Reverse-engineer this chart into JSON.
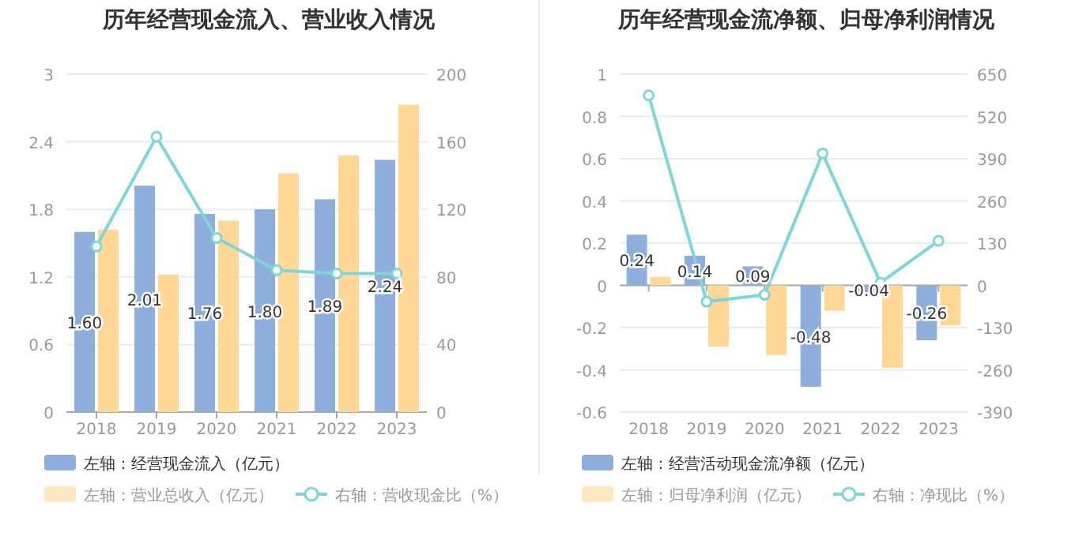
{
  "chart_data": [
    {
      "type": "bar",
      "title": "历年经营现金流入、营业收入情况",
      "categories": [
        "2018",
        "2019",
        "2020",
        "2021",
        "2022",
        "2023"
      ],
      "series": [
        {
          "name": "左轴：经营现金流入（亿元）",
          "color": "#8eaedc",
          "values": [
            1.6,
            2.01,
            1.76,
            1.8,
            1.89,
            2.24
          ],
          "value_labels": [
            "1.60",
            "2.01",
            "1.76",
            "1.80",
            "1.89",
            "2.24"
          ]
        },
        {
          "name": "左轴：营业总收入（亿元）",
          "color": "#ffd898",
          "values": [
            1.62,
            1.22,
            1.7,
            2.12,
            2.28,
            2.73
          ]
        },
        {
          "name": "右轴：营收现金比（%）",
          "type": "line",
          "axis": "y2",
          "color": "#7fd6d9",
          "marker": "circle",
          "values": [
            98,
            163,
            103,
            84,
            82,
            82
          ]
        }
      ],
      "ylim": [
        0,
        3
      ],
      "yticks": [
        0,
        0.6,
        1.2,
        1.8,
        2.4,
        3
      ],
      "y2lim": [
        0,
        200
      ],
      "y2ticks": [
        0,
        40,
        80,
        120,
        160,
        200
      ],
      "grid": "y",
      "legend": "bottom"
    },
    {
      "type": "bar",
      "title": "历年经营现金流净额、归母净利润情况",
      "categories": [
        "2018",
        "2019",
        "2020",
        "2021",
        "2022",
        "2023"
      ],
      "series": [
        {
          "name": "左轴：经营活动现金流净额（亿元）",
          "color": "#8eaedc",
          "values": [
            0.24,
            0.14,
            0.09,
            -0.48,
            -0.04,
            -0.26
          ],
          "value_labels": [
            "0.24",
            "0.14",
            "0.09",
            "-0.48",
            "-0.04",
            "-0.26"
          ]
        },
        {
          "name": "左轴：归母净利润（亿元）",
          "color": "#ffd898",
          "values": [
            0.04,
            -0.29,
            -0.33,
            -0.12,
            -0.39,
            -0.19
          ]
        },
        {
          "name": "右轴：净现比（%）",
          "type": "line",
          "axis": "y2",
          "color": "#7fd6d9",
          "marker": "circle",
          "values": [
            585,
            -50,
            -29,
            406,
            8,
            137
          ]
        }
      ],
      "ylim": [
        -0.6,
        1
      ],
      "yticks": [
        -0.6,
        -0.4,
        -0.2,
        0,
        0.2,
        0.4,
        0.6,
        0.8,
        1
      ],
      "y2lim": [
        -390,
        650
      ],
      "y2ticks": [
        -390,
        -260,
        -130,
        0,
        130,
        260,
        390,
        520,
        650
      ],
      "grid": "y",
      "legend": "bottom"
    }
  ]
}
